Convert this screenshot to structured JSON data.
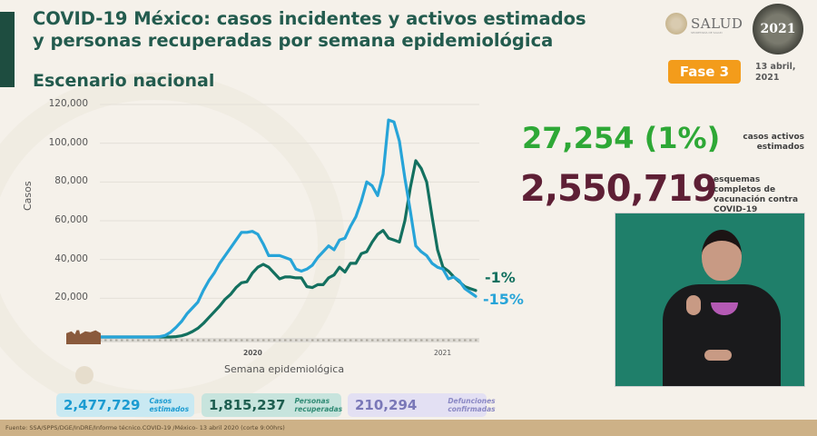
{
  "header": {
    "title": "COVID-19 México: casos incidentes y activos estimados y personas recuperadas por semana epidemiológica",
    "subtitle": "Escenario nacional",
    "logo_text": "SALUD",
    "logo_subtext": "SECRETARÍA DE SALUD",
    "emblem_text": "2021",
    "phase_badge": "Fase 3",
    "date": "13 abril, 2021"
  },
  "stats": {
    "active_cases_value": "27,254 (1%)",
    "active_cases_label": "casos activos estimados",
    "vaccination_value": "2,550,719",
    "vaccination_label": "esquemas completos de vacunación contra COVID-19"
  },
  "summary_cards": [
    {
      "value": "2,477,729",
      "label": "Casos estimados"
    },
    {
      "value": "1,815,237",
      "label": "Personas recuperadas"
    },
    {
      "value": "210,294",
      "label": "Defunciones confirmadas"
    }
  ],
  "footer": {
    "source": "Fuente: SSA/SPPS/DGE/InDRE/Informe técnico.COVID-19 /México- 13 abril 2020 (corte 9:00hrs)"
  },
  "colors": {
    "series_light": "#27a4d8",
    "series_dark": "#13705f",
    "title_green": "#235b4e",
    "active_green": "#2ea836",
    "vaccination_maroon": "#5e1f35",
    "phase_orange": "#f39c1b"
  },
  "chart_data": {
    "type": "line",
    "title": "",
    "xlabel": "Semana epidemiológica",
    "ylabel": "Casos",
    "ylim": [
      0,
      120000
    ],
    "y_ticks": [
      "20,000",
      "40,000",
      "60,000",
      "80,000",
      "100,000",
      "120,000"
    ],
    "x_year_labels": [
      "2020",
      "2021"
    ],
    "grid": true,
    "legend": "none",
    "x": [
      1,
      2,
      3,
      4,
      5,
      6,
      7,
      8,
      9,
      10,
      11,
      12,
      13,
      14,
      15,
      16,
      17,
      18,
      19,
      20,
      21,
      22,
      23,
      24,
      25,
      26,
      27,
      28,
      29,
      30,
      31,
      32,
      33,
      34,
      35,
      36,
      37,
      38,
      39,
      40,
      41,
      42,
      43,
      44,
      45,
      46,
      47,
      48,
      49,
      50,
      51,
      52,
      53,
      54,
      55,
      56,
      57,
      58,
      59,
      60,
      61,
      62,
      63,
      64,
      65,
      66,
      67,
      68,
      69,
      70
    ],
    "series": [
      {
        "name": "Casos incidentes estimados",
        "color": "#27a4d8",
        "end_annotation": "-15%",
        "values": [
          0,
          0,
          0,
          0,
          0,
          0,
          0,
          0,
          0,
          0,
          0,
          200,
          800,
          2500,
          5000,
          8000,
          12000,
          15000,
          18000,
          24000,
          29000,
          33000,
          38000,
          42000,
          46000,
          50000,
          54000,
          54000,
          54500,
          53000,
          48000,
          42000,
          42000,
          42000,
          41000,
          40000,
          35000,
          34000,
          35000,
          37000,
          41000,
          44000,
          47000,
          45000,
          50000,
          51000,
          57000,
          62000,
          70000,
          80000,
          78000,
          73000,
          84000,
          112000,
          111000,
          101000,
          82000,
          65000,
          47000,
          44000,
          42000,
          38000,
          36000,
          35000,
          30000,
          31000,
          29000,
          25000,
          23000,
          21000
        ]
      },
      {
        "name": "Casos activos estimados",
        "color": "#13705f",
        "end_annotation": "-1%",
        "values": [
          0,
          0,
          0,
          0,
          0,
          0,
          0,
          0,
          0,
          0,
          0,
          0,
          0,
          0,
          200,
          600,
          1500,
          2800,
          4500,
          7000,
          10000,
          13000,
          16000,
          19500,
          22000,
          25500,
          28000,
          28500,
          33000,
          36000,
          37500,
          36000,
          33000,
          30000,
          31000,
          31000,
          30500,
          30500,
          26000,
          25500,
          27000,
          27000,
          30500,
          32000,
          36000,
          33500,
          38000,
          38000,
          43000,
          44000,
          49000,
          53000,
          55000,
          51000,
          50000,
          49000,
          60000,
          77000,
          91000,
          87000,
          80000,
          62000,
          45000,
          36000,
          34000,
          31000,
          28500,
          26000,
          25000,
          24000
        ]
      }
    ]
  }
}
